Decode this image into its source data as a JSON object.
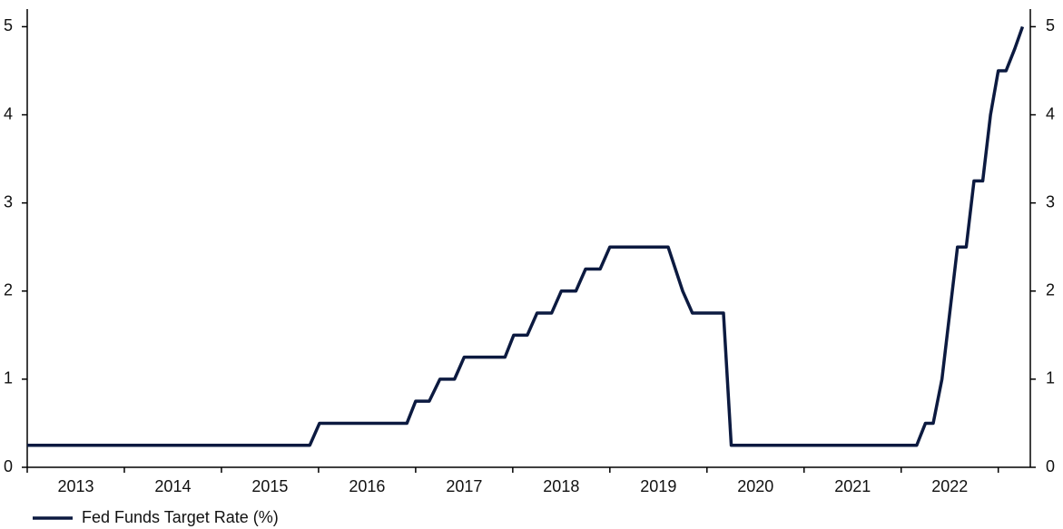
{
  "chart_data": {
    "type": "line",
    "series": [
      {
        "name": "Fed Funds Target Rate (%)",
        "color": "#0c1a40",
        "x": [
          2013.0,
          2015.91,
          2016.01,
          2016.91,
          2017.0,
          2017.14,
          2017.25,
          2017.4,
          2017.5,
          2017.92,
          2018.01,
          2018.15,
          2018.25,
          2018.4,
          2018.5,
          2018.65,
          2018.75,
          2018.9,
          2019.0,
          2019.6,
          2019.75,
          2019.85,
          2020.17,
          2020.25,
          2022.16,
          2022.25,
          2022.33,
          2022.42,
          2022.58,
          2022.67,
          2022.75,
          2022.84,
          2022.92,
          2023.0,
          2023.08,
          2023.17,
          2023.25
        ],
        "values": [
          0.25,
          0.25,
          0.5,
          0.5,
          0.75,
          0.75,
          1.0,
          1.0,
          1.25,
          1.25,
          1.5,
          1.5,
          1.75,
          1.75,
          2.0,
          2.0,
          2.25,
          2.25,
          2.5,
          2.5,
          2.0,
          1.75,
          1.75,
          0.25,
          0.25,
          0.5,
          0.5,
          1.0,
          2.5,
          2.5,
          3.25,
          3.25,
          4.0,
          4.5,
          4.5,
          4.75,
          5.0
        ]
      }
    ],
    "xlim": [
      2013,
      2023.33
    ],
    "xtick_marks": [
      2013,
      2014,
      2015,
      2016,
      2017,
      2018,
      2019,
      2020,
      2021,
      2022,
      2023
    ],
    "xticks": [
      {
        "value": 2013.5,
        "label": "2013"
      },
      {
        "value": 2014.5,
        "label": "2014"
      },
      {
        "value": 2015.5,
        "label": "2015"
      },
      {
        "value": 2016.5,
        "label": "2016"
      },
      {
        "value": 2017.5,
        "label": "2017"
      },
      {
        "value": 2018.5,
        "label": "2018"
      },
      {
        "value": 2019.5,
        "label": "2019"
      },
      {
        "value": 2020.5,
        "label": "2020"
      },
      {
        "value": 2021.5,
        "label": "2021"
      },
      {
        "value": 2022.5,
        "label": "2022"
      }
    ],
    "ylim": [
      0,
      5.2
    ],
    "yticks": [
      0,
      1,
      2,
      3,
      4,
      5
    ],
    "y2lim": [
      0,
      5.2
    ],
    "y2ticks": [
      0,
      1,
      2,
      3,
      4,
      5
    ],
    "legend": "bottom-left"
  }
}
